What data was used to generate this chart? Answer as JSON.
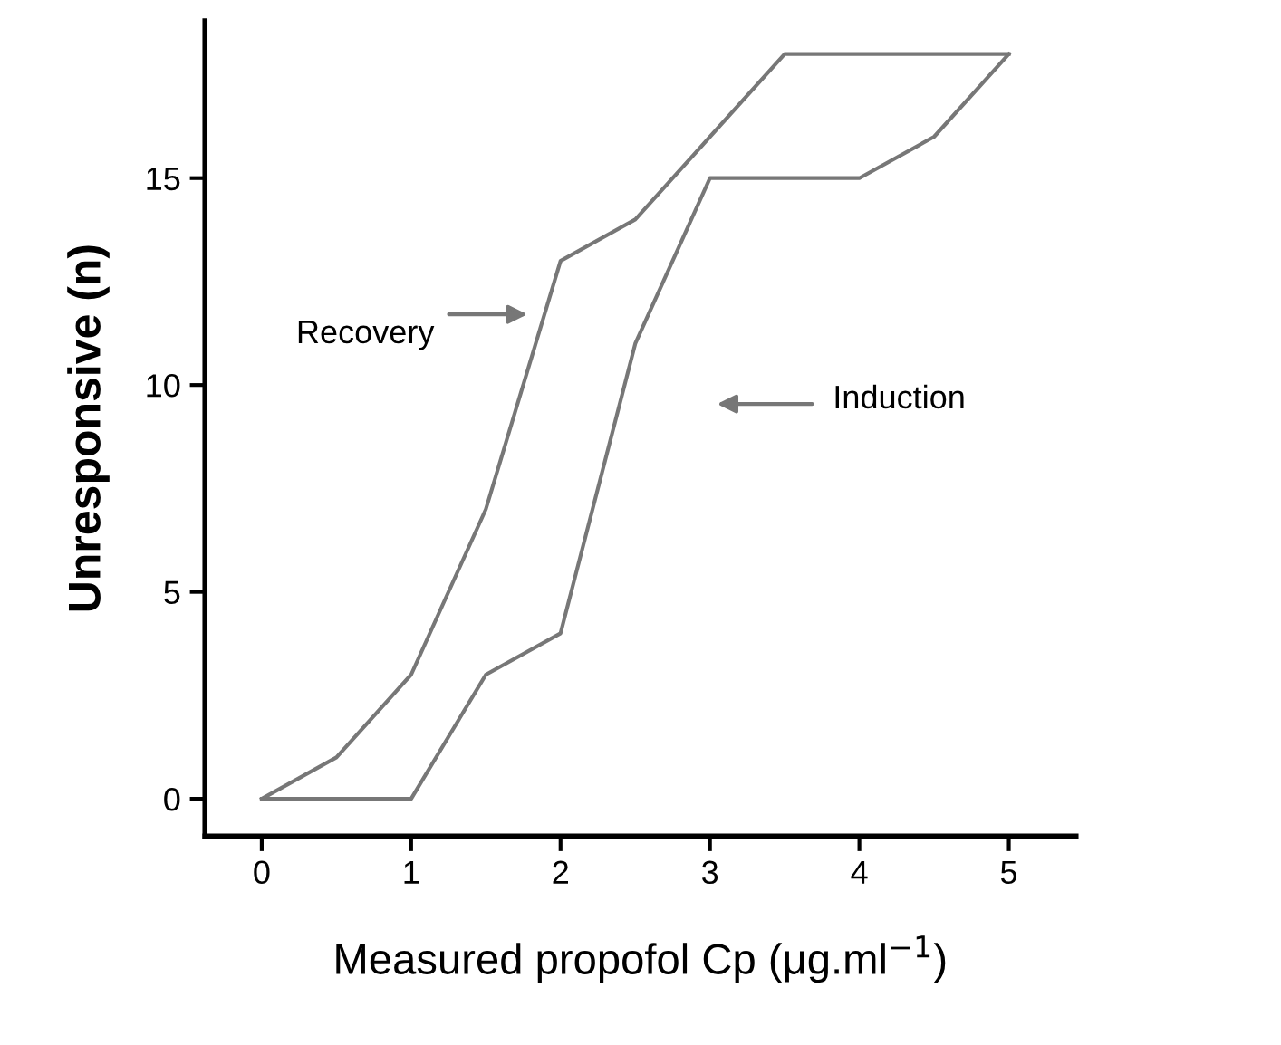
{
  "chart_data": {
    "type": "line",
    "xlabel": "Measured propofol Cp (μg.ml$^{−1}$)",
    "ylabel": "Unresponsive (n)",
    "series": [
      {
        "color": "#777777",
        "x": [
          0,
          0.5,
          1,
          1.5,
          2,
          2.5,
          3,
          3.5,
          5
        ],
        "values": [
          0,
          1,
          3,
          7,
          13,
          14,
          16,
          18,
          18
        ]
      },
      {
        "color": "#777777",
        "x": [
          0,
          1,
          1.5,
          2,
          2.5,
          3,
          4,
          4.5,
          5
        ],
        "values": [
          0,
          0,
          3,
          4,
          11,
          15,
          15,
          16,
          18
        ]
      }
    ],
    "annotations": [
      "Recovery",
      "Induction"
    ],
    "xlim": [
      -0.38,
      5.45
    ],
    "ylim": [
      -0.9,
      18.8
    ],
    "xticks": [
      0,
      1,
      2,
      3,
      4,
      5
    ],
    "yticks": [
      0,
      5,
      10,
      15
    ],
    "grid": false,
    "legend": false,
    "marker": "none",
    "line_style": "solid"
  }
}
